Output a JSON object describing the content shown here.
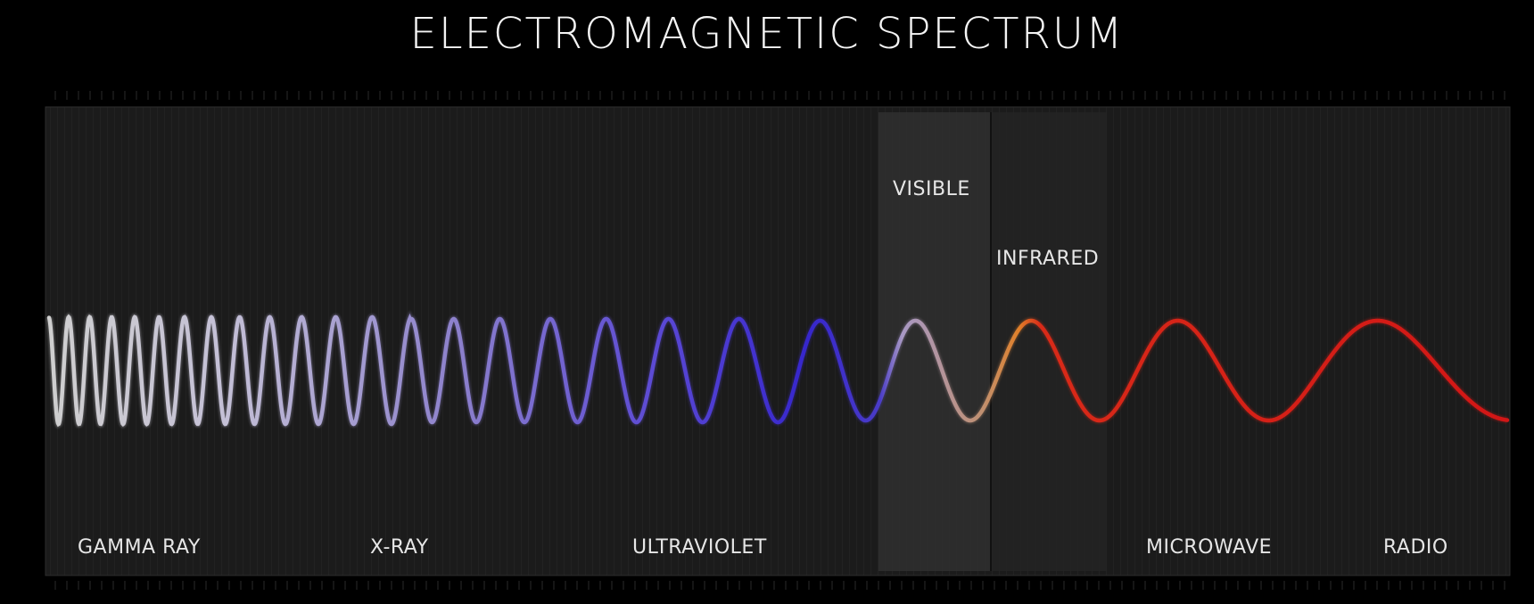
{
  "title": "ELECTROMAGNETIC SPECTRUM",
  "bands": [
    {
      "id": "gamma",
      "label": "GAMMA RAY"
    },
    {
      "id": "xray",
      "label": "X-RAY"
    },
    {
      "id": "uv",
      "label": "ULTRAVIOLET"
    },
    {
      "id": "visible",
      "label": "VISIBLE"
    },
    {
      "id": "infrared",
      "label": "INFRARED"
    },
    {
      "id": "microwave",
      "label": "MICROWAVE"
    },
    {
      "id": "radio",
      "label": "RADIO"
    }
  ],
  "colors": {
    "background": "#000000",
    "panel": "#1c1c1c",
    "highlight_visible": "#2e2e2e",
    "highlight_infrared": "#242424",
    "wave_gamma": "#c8c8c8",
    "wave_xray": "#9a90c8",
    "wave_uv": "#3a2ed0",
    "wave_visible_start": "#b0a0c0",
    "wave_visible_end": "#e89030",
    "wave_red": "#d81818"
  }
}
